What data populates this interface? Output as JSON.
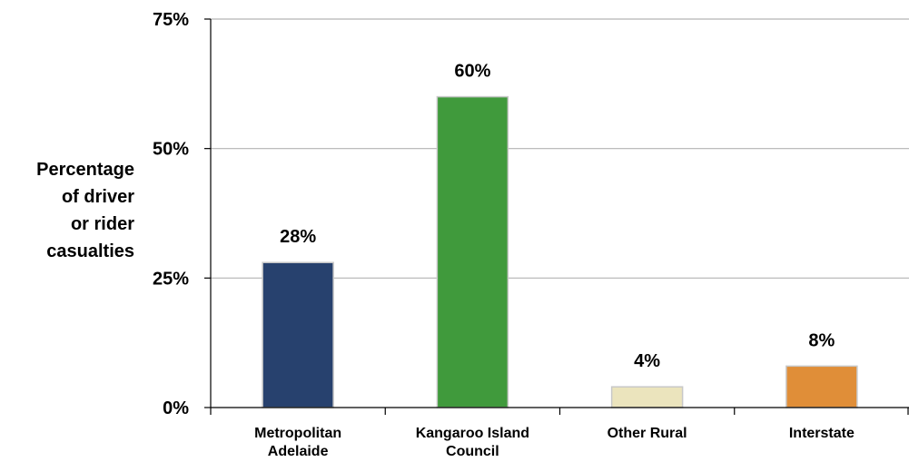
{
  "chart_data": {
    "type": "bar",
    "ylabel_lines": [
      "Percentage",
      "of driver",
      "or rider",
      "casualties"
    ],
    "categories": [
      [
        "Metropolitan",
        "Adelaide"
      ],
      [
        "Kangaroo Island",
        "Council"
      ],
      [
        "Other Rural"
      ],
      [
        "Interstate"
      ]
    ],
    "values": [
      28,
      60,
      4,
      8
    ],
    "data_labels": [
      "28%",
      "60%",
      "4%",
      "8%"
    ],
    "bar_colors": [
      "#27416E",
      "#409A3C",
      "#EBE4BD",
      "#E08E38"
    ],
    "yticks": [
      0,
      25,
      50,
      75
    ],
    "ytick_labels": [
      "0%",
      "25%",
      "50%",
      "75%"
    ],
    "ylim": [
      0,
      75
    ],
    "grid": true
  }
}
